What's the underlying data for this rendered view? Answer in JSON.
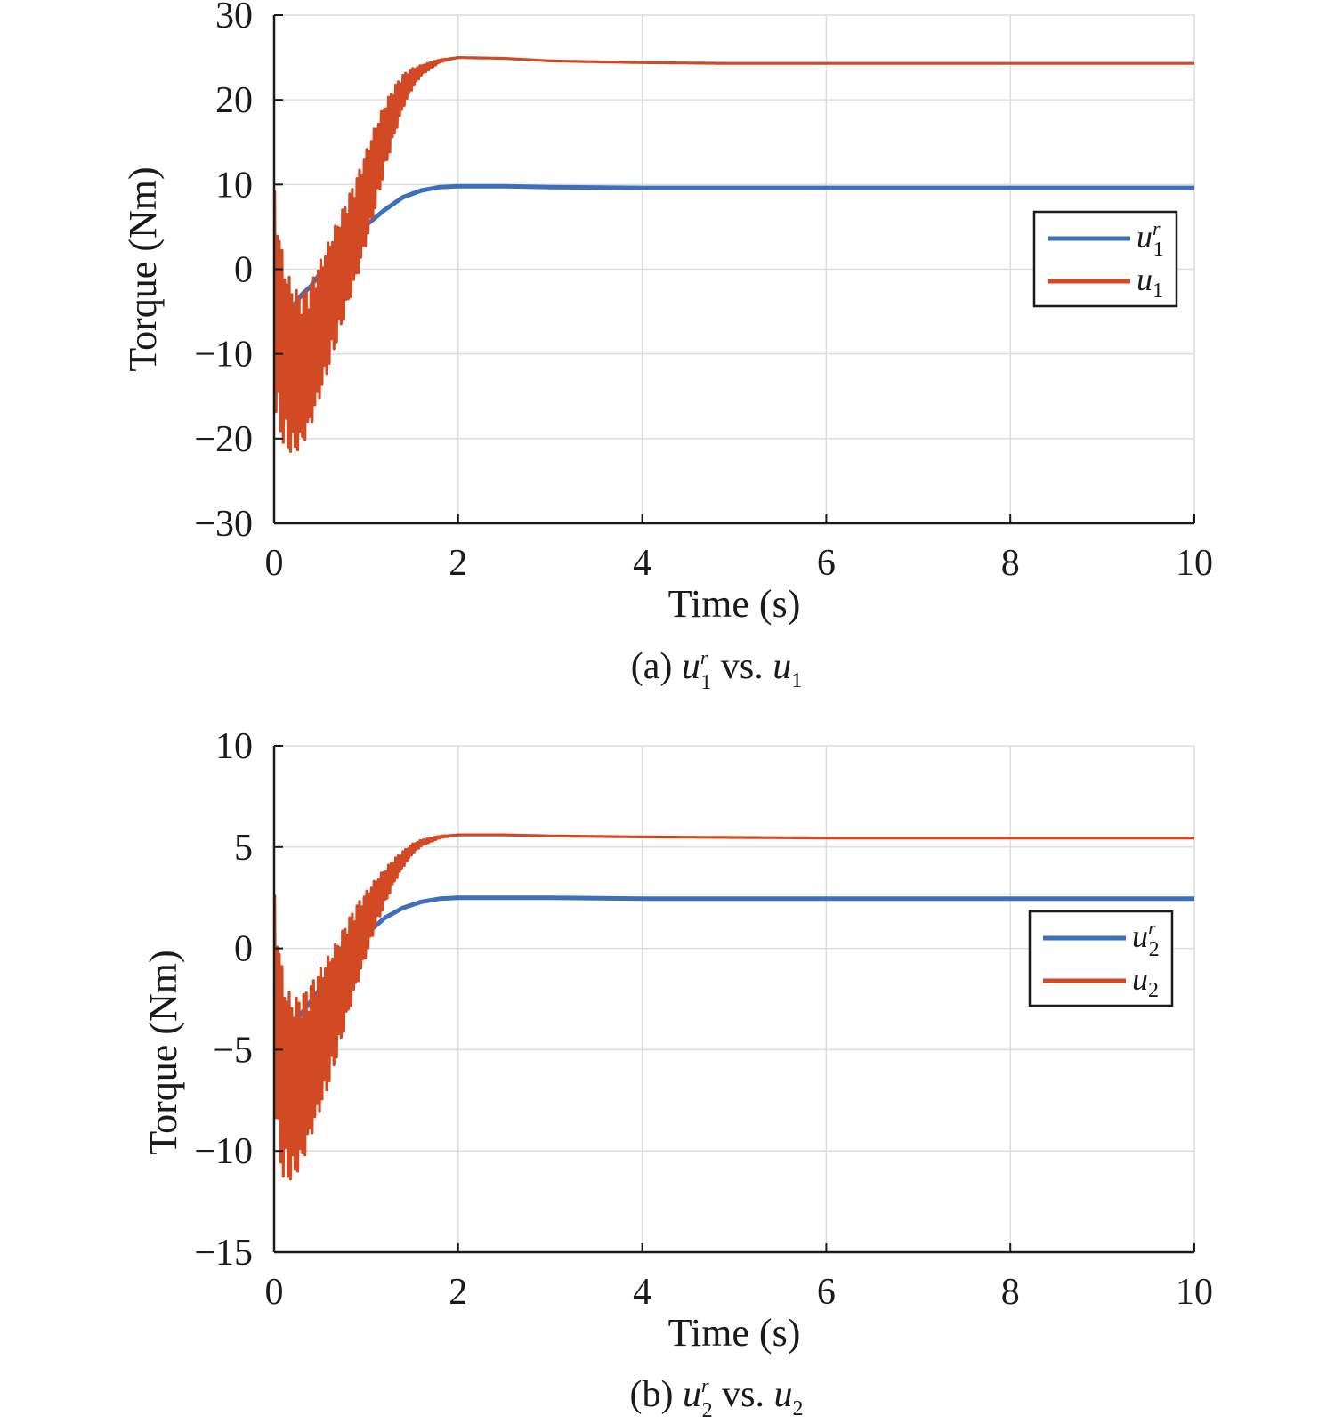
{
  "chart_data": [
    {
      "type": "line",
      "caption": {
        "prefix": "(a) ",
        "sym_a": "u",
        "sup_a": "r",
        "sub_a": "1",
        "mid": " vs. ",
        "sym_b": "u",
        "sub_b": "1"
      },
      "xlabel": "Time (s)",
      "ylabel": "Torque (Nm)",
      "xlim": [
        0,
        10
      ],
      "ylim": [
        -30,
        30
      ],
      "xticks": [
        0,
        2,
        4,
        6,
        8,
        10
      ],
      "yticks": [
        -30,
        -20,
        -10,
        0,
        10,
        20,
        30
      ],
      "ytick_labels": [
        "−30",
        "−20",
        "−10",
        "0",
        "10",
        "20",
        "30"
      ],
      "grid": true,
      "legend_position": "right",
      "series": [
        {
          "name": "u1r",
          "legend": {
            "sym": "u",
            "sup": "r",
            "sub": "1"
          },
          "color": "#3d6fbf",
          "x": [
            0,
            0.02,
            0.05,
            0.1,
            0.2,
            0.3,
            0.4,
            0.5,
            0.6,
            0.7,
            0.8,
            1.0,
            1.2,
            1.4,
            1.6,
            1.8,
            2.0,
            2.5,
            3,
            4,
            5,
            6,
            8,
            10
          ],
          "y": [
            -14,
            -10,
            -8,
            -6.5,
            -4.5,
            -3,
            -2,
            -0.5,
            0.5,
            1.5,
            3,
            5.2,
            7,
            8.5,
            9.3,
            9.7,
            9.8,
            9.8,
            9.7,
            9.6,
            9.6,
            9.6,
            9.6,
            9.6
          ]
        },
        {
          "name": "u1",
          "legend": {
            "sym": "u",
            "sub": "1"
          },
          "color": "#d14a24",
          "oscillation": true,
          "x": [
            0,
            0.03,
            0.1,
            0.2,
            0.3,
            0.4,
            0.5,
            0.6,
            0.7,
            0.8,
            0.9,
            1.0,
            1.1,
            1.2,
            1.3,
            1.4,
            1.5,
            1.6,
            1.8,
            2.0,
            2.5,
            3,
            4,
            5,
            6,
            8,
            10
          ],
          "y": [
            -5,
            -5,
            -10,
            -12,
            -12,
            -10,
            -7,
            -4,
            -1,
            2,
            5,
            8.5,
            12,
            15.5,
            18.5,
            21,
            22.5,
            23.5,
            24.6,
            25,
            24.9,
            24.6,
            24.4,
            24.3,
            24.3,
            24.3,
            24.3
          ],
          "amp": [
            15,
            12,
            11,
            10,
            9,
            8.5,
            8,
            7.5,
            7,
            6.5,
            6,
            5.5,
            5,
            4,
            3,
            2,
            1.2,
            0.6,
            0.15,
            0,
            0,
            0,
            0,
            0,
            0,
            0,
            0
          ]
        }
      ]
    },
    {
      "type": "line",
      "caption": {
        "prefix": "(b) ",
        "sym_a": "u",
        "sup_a": "r",
        "sub_a": "2",
        "mid": " vs. ",
        "sym_b": "u",
        "sub_b": "2"
      },
      "xlabel": "Time (s)",
      "ylabel": "Torque (Nm)",
      "xlim": [
        0,
        10
      ],
      "ylim": [
        -15,
        10
      ],
      "xticks": [
        0,
        2,
        4,
        6,
        8,
        10
      ],
      "yticks": [
        -15,
        -10,
        -5,
        0,
        5,
        10
      ],
      "ytick_labels": [
        "−15",
        "−10",
        "−5",
        "0",
        "5",
        "10"
      ],
      "grid": true,
      "legend_position": "right",
      "series": [
        {
          "name": "u2r",
          "legend": {
            "sym": "u",
            "sup": "r",
            "sub": "2"
          },
          "color": "#3d6fbf",
          "x": [
            0,
            0.02,
            0.05,
            0.1,
            0.2,
            0.3,
            0.4,
            0.5,
            0.6,
            0.7,
            0.8,
            0.9,
            1.0,
            1.2,
            1.4,
            1.6,
            1.8,
            2.0,
            2.5,
            3,
            4,
            6,
            8,
            10
          ],
          "y": [
            0,
            -3,
            -4,
            -4.2,
            -3.8,
            -3.2,
            -2.6,
            -2,
            -1.4,
            -0.8,
            -0.3,
            0.2,
            0.7,
            1.5,
            2.0,
            2.3,
            2.45,
            2.5,
            2.5,
            2.5,
            2.45,
            2.45,
            2.45,
            2.45
          ]
        },
        {
          "name": "u2",
          "legend": {
            "sym": "u",
            "sub": "2"
          },
          "color": "#d14a24",
          "oscillation": true,
          "x": [
            0,
            0.03,
            0.1,
            0.2,
            0.3,
            0.4,
            0.5,
            0.6,
            0.7,
            0.8,
            0.9,
            1.0,
            1.1,
            1.2,
            1.3,
            1.4,
            1.5,
            1.6,
            1.8,
            2.0,
            2.5,
            3,
            4,
            6,
            8,
            10
          ],
          "y": [
            -2,
            -4,
            -6.5,
            -7,
            -6.5,
            -5.5,
            -4.5,
            -3.5,
            -2.3,
            -1,
            0.2,
            1.2,
            2.2,
            3,
            3.8,
            4.4,
            4.9,
            5.2,
            5.5,
            5.6,
            5.6,
            5.55,
            5.5,
            5.45,
            5.45,
            5.45
          ],
          "amp": [
            5,
            5.5,
            5,
            4.5,
            4.2,
            3.8,
            3.5,
            3.2,
            2.8,
            2.4,
            2,
            1.6,
            1.2,
            0.9,
            0.6,
            0.4,
            0.25,
            0.15,
            0.05,
            0,
            0,
            0,
            0,
            0,
            0,
            0
          ]
        }
      ]
    }
  ]
}
